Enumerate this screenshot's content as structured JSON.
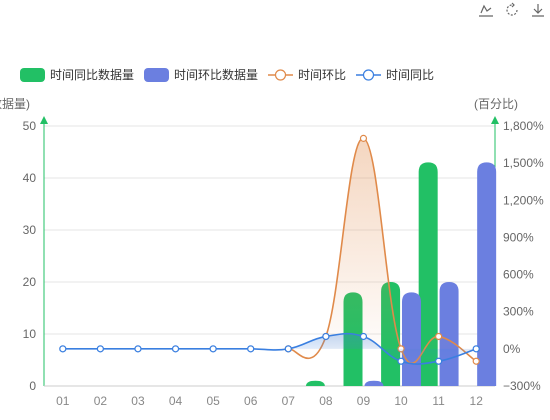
{
  "toolbox": {
    "icons": [
      "line-chart-switch-icon",
      "restore-icon",
      "download-icon"
    ]
  },
  "legend": [
    {
      "name": "时间同比数据量",
      "kind": "bar",
      "color": "#22c065"
    },
    {
      "name": "时间环比数据量",
      "kind": "bar",
      "color": "#6b7fe0"
    },
    {
      "name": "时间环比",
      "kind": "line",
      "color": "#e08a4a"
    },
    {
      "name": "时间同比",
      "kind": "line",
      "color": "#3a7fe0"
    }
  ],
  "chart_data": {
    "type": "bar",
    "categories": [
      "01",
      "02",
      "03",
      "04",
      "05",
      "06",
      "07",
      "08",
      "09",
      "10",
      "11",
      "12"
    ],
    "y_left": {
      "name": "(数据量)",
      "min": 0,
      "max": 50,
      "ticks": [
        "0",
        "10",
        "20",
        "30",
        "40",
        "50"
      ]
    },
    "y_right": {
      "name": "(百分比)",
      "min": -300,
      "max": 1800,
      "ticks": [
        "−300%",
        "0%",
        "300%",
        "600%",
        "900%",
        "1,200%",
        "1,500%",
        "1,800%"
      ]
    },
    "series": [
      {
        "name": "时间同比数据量",
        "type": "bar",
        "axis": "left",
        "color": "#22c065",
        "values": [
          0,
          0,
          0,
          0,
          0,
          0,
          0,
          1,
          18,
          20,
          43,
          0
        ]
      },
      {
        "name": "时间环比数据量",
        "type": "bar",
        "axis": "left",
        "color": "#6b7fe0",
        "values": [
          0,
          0,
          0,
          0,
          0,
          0,
          0,
          0,
          1,
          18,
          20,
          43
        ]
      },
      {
        "name": "时间环比",
        "type": "line",
        "axis": "right",
        "color": "#e08a4a",
        "values": [
          null,
          null,
          null,
          null,
          null,
          null,
          0,
          100,
          1700,
          0,
          100,
          -100
        ]
      },
      {
        "name": "时间同比",
        "type": "line",
        "axis": "right",
        "color": "#3a7fe0",
        "values": [
          0,
          0,
          0,
          0,
          0,
          0,
          0,
          100,
          100,
          -100,
          -100,
          0
        ]
      }
    ],
    "grid": true,
    "legend_position": "top-left"
  }
}
